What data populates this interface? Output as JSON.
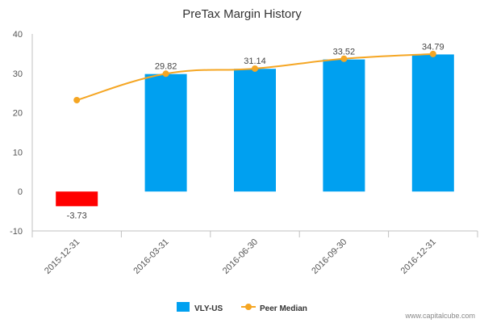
{
  "chart_data": {
    "type": "bar",
    "title": "PreTax Margin History",
    "categories": [
      "2015-12-31",
      "2016-03-31",
      "2016-06-30",
      "2016-09-30",
      "2016-12-31"
    ],
    "ylim": [
      -10,
      40
    ],
    "yticks": [
      -10,
      0,
      10,
      20,
      30,
      40
    ],
    "series": [
      {
        "name": "VLY-US",
        "kind": "bar",
        "values": [
          -3.73,
          29.82,
          31.14,
          33.52,
          34.79
        ],
        "data_labels": [
          "-3.73",
          "29.82",
          "31.14",
          "33.52",
          "34.79"
        ],
        "color": "#00a0f0",
        "negative_color": "#ff0000"
      },
      {
        "name": "Peer Median",
        "kind": "line",
        "values": [
          23.2,
          29.9,
          31.2,
          33.7,
          34.9
        ],
        "color": "#f5a623"
      }
    ],
    "grid": false,
    "legend_position": "bottom-center"
  },
  "credit": "www.capitalcube.com"
}
